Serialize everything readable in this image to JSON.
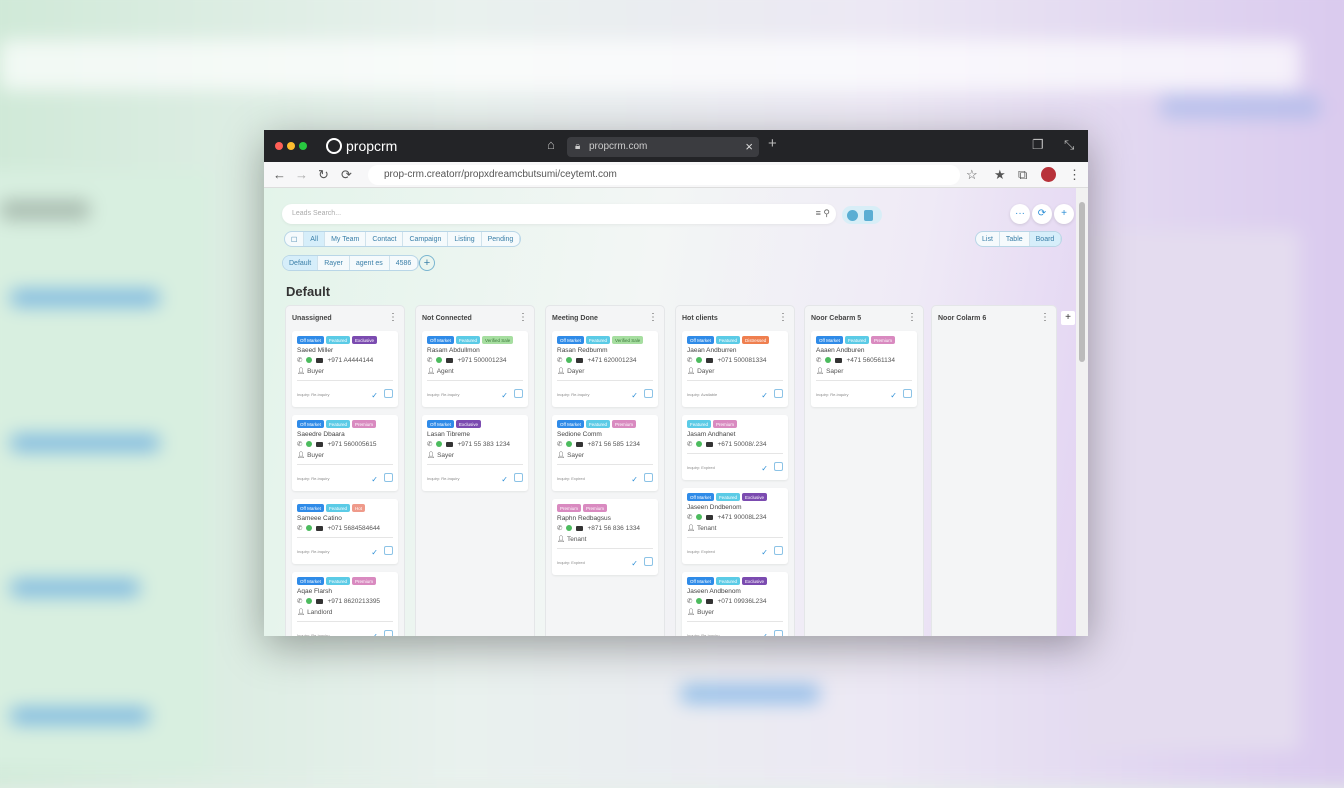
{
  "browser": {
    "app_name": "propcrm",
    "tab_title": "propcrm.com",
    "url": "prop-crm.creatorr/propxdreamcbutsumi/ceytemt.com"
  },
  "search": {
    "placeholder": "Leads Search..."
  },
  "filters": [
    "All",
    "My Team",
    "Contact",
    "Campaign",
    "Listing",
    "Pending"
  ],
  "views": [
    "List",
    "Table",
    "Board"
  ],
  "pipelines": [
    "Default",
    "Rayer",
    "agent es",
    "4586"
  ],
  "board_title": "Default",
  "colors": {
    "blue": "#2f8be8",
    "cyan": "#5bcbe6",
    "purple": "#7b4bb0",
    "green": "#a6dea0",
    "pink": "#d98ac0",
    "orange": "#ef7f4f",
    "salmon": "#ef9a8a"
  },
  "columns": [
    {
      "title": "Unassigned",
      "cards": [
        {
          "tags": [
            [
              "Off Market",
              "blue"
            ],
            [
              "Featured",
              "cyan"
            ],
            [
              "Exclusive",
              "purple"
            ]
          ],
          "name": "Saeed Miller",
          "phone": "+971 A4444144",
          "role": "Buyer",
          "footer": "Inquiry: Re-inquiry"
        },
        {
          "tags": [
            [
              "Off Market",
              "blue"
            ],
            [
              "Featured",
              "cyan"
            ],
            [
              "Premium",
              "pink"
            ]
          ],
          "name": "Saeedre Dbaara",
          "phone": "+971 560005615",
          "role": "Buyer",
          "footer": "Inquiry: Re-inquiry"
        },
        {
          "tags": [
            [
              "Off Market",
              "blue"
            ],
            [
              "Featured",
              "cyan"
            ],
            [
              "Hot",
              "salmon"
            ]
          ],
          "name": "Sameee Catino",
          "phone": "+071 5684584644",
          "role": "",
          "footer": "Inquiry: Re-inquiry"
        },
        {
          "tags": [
            [
              "Off Market",
              "blue"
            ],
            [
              "Featured",
              "cyan"
            ],
            [
              "Premium",
              "pink"
            ]
          ],
          "name": "Aqae Flarsh",
          "phone": "+971 8620213395",
          "role": "Landlord",
          "footer": "Inquiry: Re-inquiry"
        }
      ]
    },
    {
      "title": "Not Connected",
      "cards": [
        {
          "tags": [
            [
              "Off Market",
              "blue"
            ],
            [
              "Featured",
              "cyan"
            ],
            [
              "Verified Sale",
              "green"
            ]
          ],
          "name": "Rasam Abdullmon",
          "phone": "+971 500001234",
          "role": "Agent",
          "footer": "Inquiry: Re-inquiry"
        },
        {
          "tags": [
            [
              "Off Market",
              "blue"
            ],
            [
              "Exclusive",
              "purple"
            ]
          ],
          "name": "Lasan Tibreme",
          "phone": "+971 55 383 1234",
          "role": "Sayer",
          "footer": "Inquiry: Re-inquiry"
        }
      ]
    },
    {
      "title": "Meeting Done",
      "cards": [
        {
          "tags": [
            [
              "Off Market",
              "blue"
            ],
            [
              "Featured",
              "cyan"
            ],
            [
              "Verified Sale",
              "green"
            ]
          ],
          "name": "Rasan Redbumm",
          "phone": "+471 620001234",
          "role": "Dayer",
          "footer": "Inquiry: Re-inquiry"
        },
        {
          "tags": [
            [
              "Off Market",
              "blue"
            ],
            [
              "Featured",
              "cyan"
            ],
            [
              "Premium",
              "pink"
            ]
          ],
          "name": "Sedione Comm",
          "phone": "+871 56 585 1234",
          "role": "Sayer",
          "footer": "Inquiry: Expired"
        },
        {
          "tags": [
            [
              "Premium",
              "pink"
            ],
            [
              "Premium",
              "pink"
            ]
          ],
          "name": "Raphn Redbagsus",
          "phone": "+871 56 836 1334",
          "role": "Tenant",
          "footer": "Inquiry: Expired"
        }
      ]
    },
    {
      "title": "Hot clients",
      "cards": [
        {
          "tags": [
            [
              "Off Market",
              "blue"
            ],
            [
              "Featured",
              "cyan"
            ],
            [
              "Distressed",
              "orange"
            ]
          ],
          "name": "Jaean Andburren",
          "phone": "+071 500081334",
          "role": "Dayer",
          "footer": "Inquiry: Available"
        },
        {
          "tags": [
            [
              "Featured",
              "cyan"
            ],
            [
              "Premium",
              "pink"
            ]
          ],
          "name": "Jasam Andhanet",
          "phone": "+671 50008/.234",
          "role": "",
          "footer": "Inquiry: Expired"
        },
        {
          "tags": [
            [
              "Off Market",
              "blue"
            ],
            [
              "Featured",
              "cyan"
            ],
            [
              "Exclusive",
              "purple"
            ]
          ],
          "name": "Jaseen Dndbenom",
          "phone": "+471 90008L234",
          "role": "Tenant",
          "footer": "Inquiry: Expired"
        },
        {
          "tags": [
            [
              "Off Market",
              "blue"
            ],
            [
              "Featured",
              "cyan"
            ],
            [
              "Exclusive",
              "purple"
            ]
          ],
          "name": "Jaseen Andbenom",
          "phone": "+071 09936L234",
          "role": "Buyer",
          "footer": "Inquiry: Re-inquiry"
        }
      ]
    },
    {
      "title": "Noor Cebarm 5",
      "cards": [
        {
          "tags": [
            [
              "Off Market",
              "blue"
            ],
            [
              "Featured",
              "cyan"
            ],
            [
              "Premium",
              "pink"
            ]
          ],
          "name": "Aaaen Andburen",
          "phone": "+471 560561134",
          "role": "Saper",
          "footer": "Inquiry: Re-inquiry"
        }
      ]
    },
    {
      "title": "Noor Colarm 6",
      "cards": []
    }
  ]
}
